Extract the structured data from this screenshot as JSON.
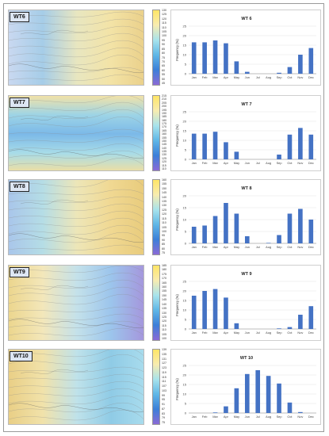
{
  "colors": {
    "bar": "#4472c4",
    "map_palette": [
      "#9b6fd6",
      "#7ab0e8",
      "#a8dce8",
      "#f2e4a8",
      "#e9c77a"
    ],
    "colorbar_gradient": [
      "#ffe566",
      "#f8ecb0",
      "#a8e3ec",
      "#5fb6e6",
      "#3c7fd8",
      "#8a6ad6"
    ]
  },
  "panels": [
    {
      "label": "WT6",
      "colorbar_ticks": [
        "130",
        "125",
        "120",
        "115",
        "110",
        "105",
        "100",
        "95",
        "90",
        "85",
        "80",
        "75",
        "70",
        "65",
        "60",
        "55",
        "50",
        "45"
      ],
      "chart": {
        "title": "WT 6",
        "ylabel": "Frequency (%)",
        "yticks": [
          0,
          5,
          10,
          15,
          20,
          25
        ]
      }
    },
    {
      "label": "WT7",
      "colorbar_ticks": [
        "215",
        "210",
        "205",
        "200",
        "195",
        "190",
        "185",
        "180",
        "175",
        "170",
        "165",
        "160",
        "155",
        "150",
        "145",
        "140",
        "135",
        "130",
        "125",
        "120",
        "115",
        "110"
      ],
      "chart": {
        "title": "WT 7",
        "ylabel": "Frequency (%)",
        "yticks": [
          0,
          5,
          10,
          15,
          20,
          25
        ]
      }
    },
    {
      "label": "WT8",
      "colorbar_ticks": [
        "160",
        "155",
        "150",
        "145",
        "140",
        "135",
        "130",
        "125",
        "120",
        "115",
        "110",
        "105",
        "100",
        "95",
        "90",
        "85",
        "80",
        "75"
      ],
      "chart": {
        "title": "WT 8",
        "ylabel": "Frequency (%)",
        "yticks": [
          0,
          5,
          10,
          15,
          20
        ]
      }
    },
    {
      "label": "WT9",
      "colorbar_ticks": [
        "185",
        "180",
        "175",
        "170",
        "165",
        "160",
        "155",
        "150",
        "145",
        "140",
        "135",
        "130",
        "125",
        "120",
        "115",
        "110",
        "105",
        "100"
      ],
      "chart": {
        "title": "WT 9",
        "ylabel": "Frequency (%)",
        "yticks": [
          0,
          5,
          10,
          15,
          20,
          25
        ]
      }
    },
    {
      "label": "WT10",
      "colorbar_ticks": [
        "139",
        "135",
        "131",
        "127",
        "123",
        "119",
        "115",
        "111",
        "107",
        "103",
        "99",
        "95",
        "91",
        "87",
        "83",
        "79",
        "75"
      ],
      "chart": {
        "title": "WT 10",
        "ylabel": "Frequency (%)",
        "yticks": [
          0,
          5,
          10,
          15,
          20,
          25
        ]
      }
    }
  ],
  "chart_data": [
    {
      "type": "bar",
      "title": "WT 6",
      "ylabel": "Frequency (%)",
      "ylim": [
        0,
        25
      ],
      "categories": [
        "Jan",
        "Feb",
        "Mar",
        "Apr",
        "May",
        "Jun",
        "Jul",
        "Aug",
        "Sep",
        "Oct",
        "Nov",
        "Dec"
      ],
      "values": [
        16.5,
        16.5,
        17.5,
        16.0,
        6.5,
        1.0,
        0,
        0,
        0.5,
        3.5,
        10.0,
        13.5
      ]
    },
    {
      "type": "bar",
      "title": "WT 7",
      "ylabel": "Frequency (%)",
      "ylim": [
        0,
        25
      ],
      "categories": [
        "Jan",
        "Feb",
        "Mar",
        "Apr",
        "May",
        "Jun",
        "Jul",
        "Aug",
        "Sep",
        "Oct",
        "Nov",
        "Dec"
      ],
      "values": [
        13.5,
        13.5,
        14.5,
        9.0,
        4.0,
        0,
        0,
        0,
        2.5,
        13.0,
        16.5,
        13.0
      ]
    },
    {
      "type": "bar",
      "title": "WT 8",
      "ylabel": "Frequency (%)",
      "ylim": [
        0,
        20
      ],
      "categories": [
        "Jan",
        "Feb",
        "Mar",
        "Apr",
        "May",
        "Jun",
        "Jul",
        "Aug",
        "Sep",
        "Oct",
        "Nov",
        "Dec"
      ],
      "values": [
        7.0,
        7.5,
        11.5,
        17.0,
        12.5,
        3.0,
        0,
        0.2,
        3.5,
        12.5,
        14.5,
        10.0
      ]
    },
    {
      "type": "bar",
      "title": "WT 9",
      "ylabel": "Frequency (%)",
      "ylim": [
        0,
        25
      ],
      "categories": [
        "Jan",
        "Feb",
        "Mar",
        "Apr",
        "May",
        "Jun",
        "Jul",
        "Aug",
        "Sep",
        "Oct",
        "Nov",
        "Dec"
      ],
      "values": [
        17.5,
        20.0,
        21.0,
        16.5,
        3.0,
        0,
        0,
        0,
        0.3,
        1.0,
        7.5,
        12.0
      ]
    },
    {
      "type": "bar",
      "title": "WT 10",
      "ylabel": "Frequency (%)",
      "ylim": [
        0,
        25
      ],
      "categories": [
        "Jan",
        "Feb",
        "Mar",
        "Apr",
        "May",
        "Jun",
        "Jul",
        "Aug",
        "Sep",
        "Oct",
        "Nov",
        "Dec"
      ],
      "values": [
        0,
        0,
        0.3,
        3.5,
        13.0,
        20.5,
        22.5,
        19.5,
        15.5,
        5.5,
        0.5,
        0
      ]
    }
  ]
}
